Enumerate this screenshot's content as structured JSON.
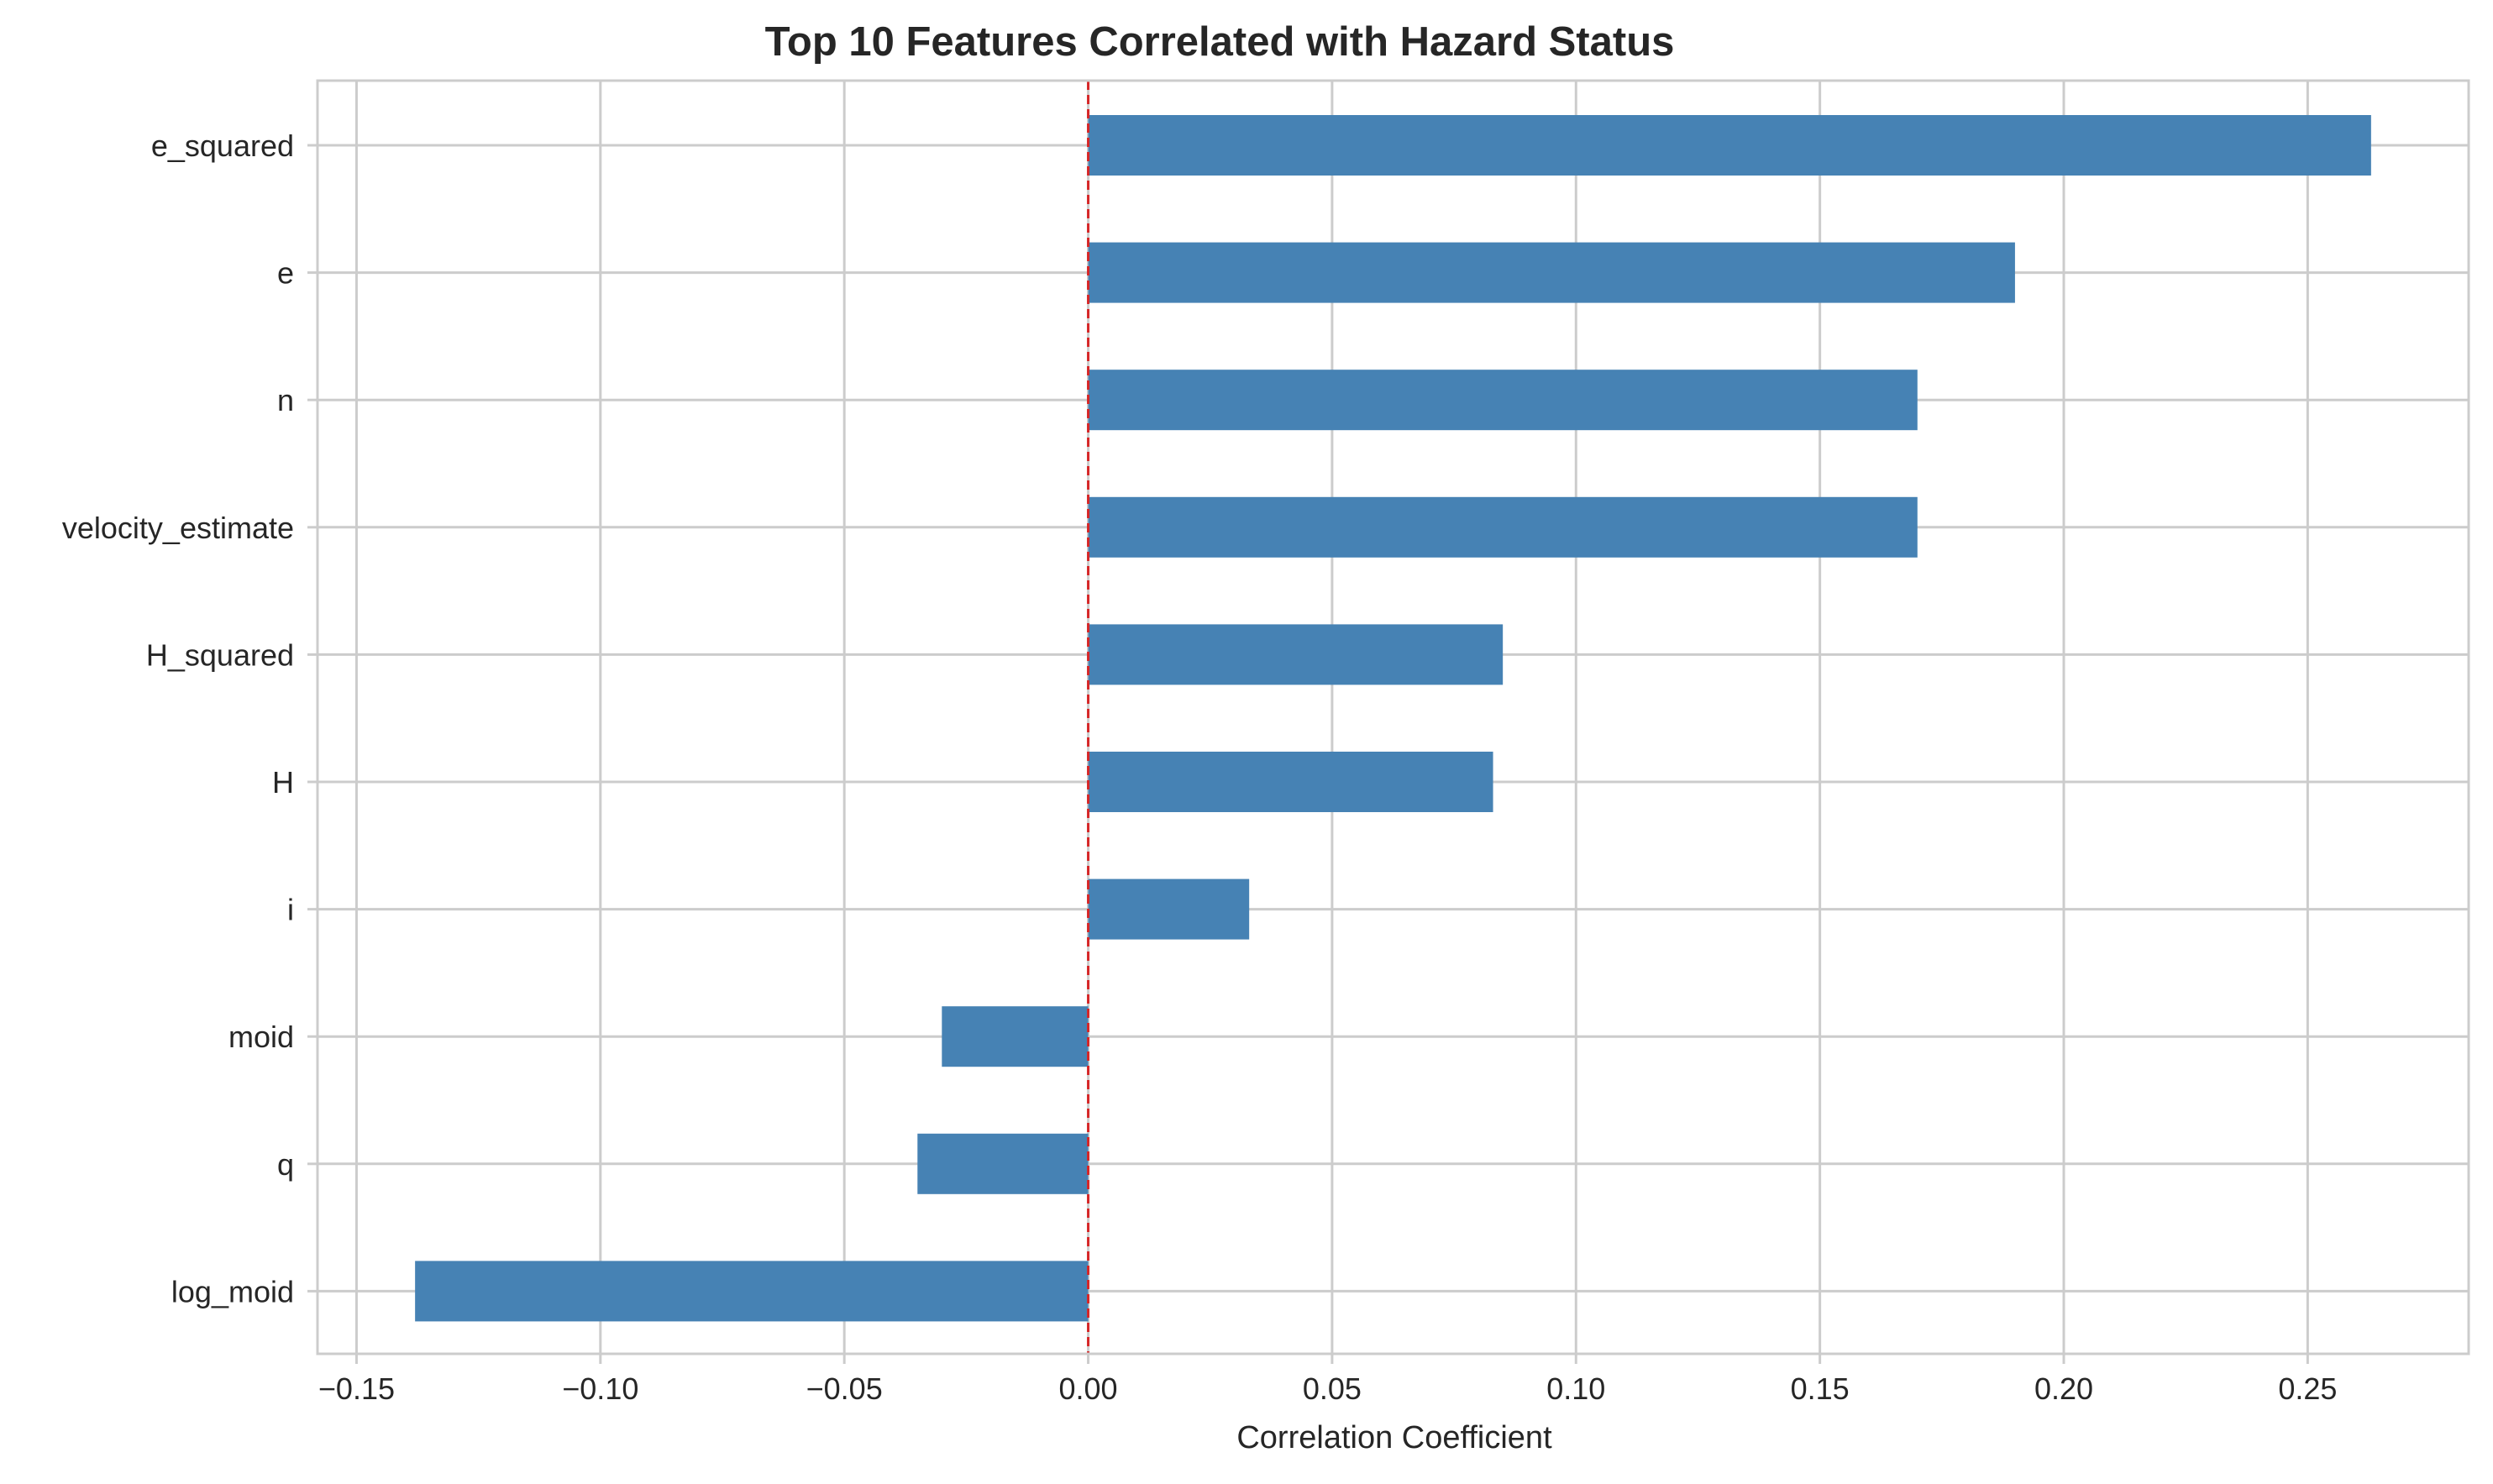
{
  "chart_data": {
    "type": "bar",
    "orientation": "horizontal",
    "title": "Top 10 Features Correlated with Hazard Status",
    "xlabel": "Correlation Coefficient",
    "ylabel": "",
    "categories": [
      "e_squared",
      "e",
      "n",
      "velocity_estimate",
      "H_squared",
      "H",
      "i",
      "moid",
      "q",
      "log_moid"
    ],
    "values": [
      0.263,
      0.19,
      0.17,
      0.17,
      0.085,
      0.083,
      0.033,
      -0.03,
      -0.035,
      -0.138
    ],
    "xlim": [
      -0.158,
      0.283
    ],
    "xticks": [
      -0.15,
      -0.1,
      -0.05,
      0.0,
      0.05,
      0.1,
      0.15,
      0.2,
      0.25
    ],
    "xtick_labels": [
      "−0.15",
      "−0.10",
      "−0.05",
      "0.00",
      "0.05",
      "0.10",
      "0.15",
      "0.20",
      "0.25"
    ],
    "reference_line": {
      "x": 0,
      "style": "dashed"
    },
    "grid": true,
    "colors": {
      "bar": "#4682b4",
      "reference_line": "#d62728",
      "grid": "#cccccc",
      "spine": "#cccccc",
      "text": "#262626"
    }
  }
}
